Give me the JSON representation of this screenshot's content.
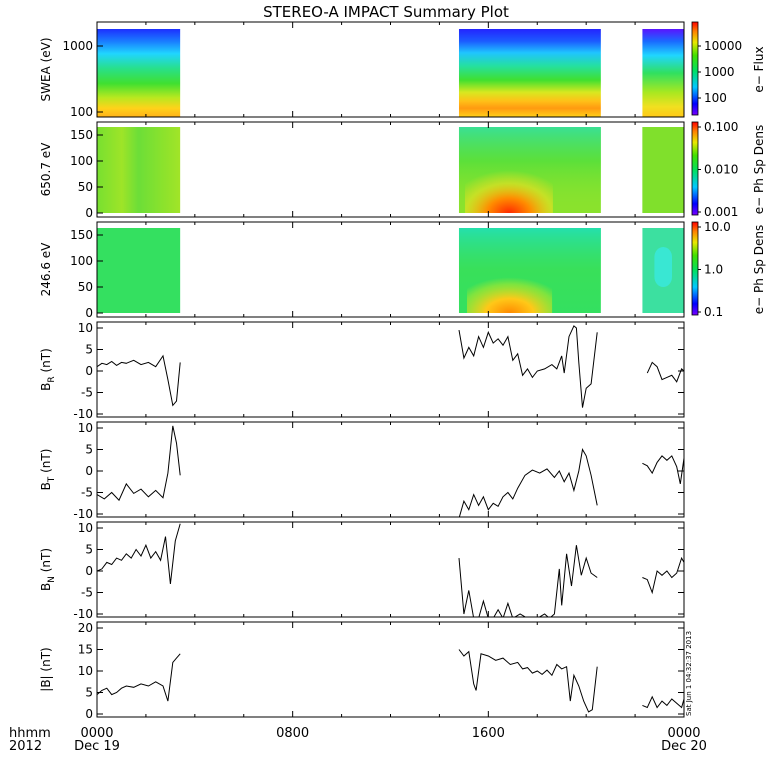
{
  "title": "STEREO-A IMPACT Summary Plot",
  "stamp": "Sat Jun  1 04:32:37 2013",
  "time_axis": {
    "label_row1": "hhmm",
    "label_row2": "2012",
    "ticks": [
      {
        "value": "0000",
        "date": "Dec 19"
      },
      {
        "value": "0800",
        "date": ""
      },
      {
        "value": "1600",
        "date": ""
      },
      {
        "value": "0000",
        "date": "Dec 20"
      }
    ]
  },
  "chart_data": [
    {
      "type": "heatmap",
      "id": "swea",
      "ylabel": "SWEA (eV)",
      "yscale": "log",
      "ylim": [
        90,
        2000
      ],
      "yticks": [
        "1000",
        "100"
      ],
      "colorbar": {
        "label": "e− Flux",
        "ticks": [
          "10000",
          "1000",
          "100"
        ],
        "scale": "log"
      },
      "data_intervals_hours": [
        [
          0.0,
          3.4
        ],
        [
          14.8,
          20.6
        ],
        [
          22.3,
          24.0
        ]
      ],
      "colors": {
        "top": "#1a3cff",
        "upper": "#22d6ff",
        "mid": "#2ee05a",
        "lower": "#d8ec22",
        "bottom": "#ffb21c"
      }
    },
    {
      "type": "heatmap",
      "id": "pad650",
      "ylabel": "650.7 eV",
      "ylim": [
        0,
        180
      ],
      "yticks": [
        "150",
        "100",
        "50",
        "0"
      ],
      "colorbar": {
        "label": "e− Ph Sp Dens",
        "ticks": [
          "0.100",
          "0.010",
          "0.001"
        ],
        "scale": "log"
      },
      "data_intervals_hours": [
        [
          0.0,
          3.4
        ],
        [
          14.8,
          20.6
        ],
        [
          22.3,
          24.0
        ]
      ]
    },
    {
      "type": "heatmap",
      "id": "pad246",
      "ylabel": "246.6 eV",
      "ylim": [
        0,
        180
      ],
      "yticks": [
        "150",
        "100",
        "50",
        "0"
      ],
      "colorbar": {
        "label": "e− Ph Sp Dens",
        "ticks": [
          "10.0",
          "1.0",
          "0.1"
        ],
        "scale": "log"
      },
      "data_intervals_hours": [
        [
          0.0,
          3.4
        ],
        [
          14.8,
          20.6
        ],
        [
          22.3,
          24.0
        ]
      ]
    },
    {
      "type": "line",
      "id": "br",
      "ylabel_main": "B",
      "ylabel_sub": "R",
      "ylabel_unit": " (nT)",
      "ylim": [
        -10,
        10
      ],
      "yticks": [
        10,
        5,
        0,
        -5,
        -10
      ],
      "segments": [
        [
          [
            0.0,
            1.0
          ],
          [
            0.2,
            1.8
          ],
          [
            0.4,
            1.5
          ],
          [
            0.6,
            2.2
          ],
          [
            0.8,
            1.3
          ],
          [
            1.0,
            2.0
          ],
          [
            1.2,
            1.8
          ],
          [
            1.5,
            2.5
          ],
          [
            1.8,
            1.5
          ],
          [
            2.1,
            2.0
          ],
          [
            2.4,
            1.0
          ],
          [
            2.7,
            3.5
          ],
          [
            2.9,
            -2.0
          ],
          [
            3.1,
            -8.0
          ],
          [
            3.25,
            -7.0
          ],
          [
            3.4,
            2.0
          ]
        ],
        [
          [
            14.8,
            9.5
          ],
          [
            15.0,
            3.0
          ],
          [
            15.2,
            5.5
          ],
          [
            15.4,
            3.5
          ],
          [
            15.6,
            8.0
          ],
          [
            15.8,
            5.5
          ],
          [
            16.0,
            9.0
          ],
          [
            16.2,
            6.5
          ],
          [
            16.4,
            7.5
          ],
          [
            16.6,
            6.0
          ],
          [
            16.8,
            8.0
          ],
          [
            17.0,
            2.5
          ],
          [
            17.2,
            4.0
          ],
          [
            17.4,
            -1.0
          ],
          [
            17.6,
            0.5
          ],
          [
            17.8,
            -1.5
          ],
          [
            18.0,
            0.0
          ],
          [
            18.3,
            0.5
          ],
          [
            18.6,
            1.5
          ],
          [
            18.8,
            0.5
          ],
          [
            19.0,
            3.5
          ],
          [
            19.1,
            -0.5
          ],
          [
            19.3,
            8.0
          ],
          [
            19.5,
            10.5
          ],
          [
            19.6,
            10.0
          ],
          [
            19.7,
            2.0
          ],
          [
            19.85,
            -8.5
          ],
          [
            20.0,
            -4.0
          ],
          [
            20.2,
            -3.0
          ],
          [
            20.45,
            9.0
          ]
        ],
        [
          [
            22.5,
            -0.5
          ],
          [
            22.7,
            2.0
          ],
          [
            22.9,
            1.0
          ],
          [
            23.1,
            -2.0
          ],
          [
            23.3,
            -1.5
          ],
          [
            23.5,
            -1.0
          ],
          [
            23.7,
            -2.5
          ],
          [
            23.9,
            0.5
          ],
          [
            24.0,
            0.0
          ]
        ]
      ]
    },
    {
      "type": "line",
      "id": "bt",
      "ylabel_main": "B",
      "ylabel_sub": "T",
      "ylabel_unit": " (nT)",
      "ylim": [
        -10,
        10
      ],
      "yticks": [
        10,
        5,
        0,
        -5,
        -10
      ],
      "segments": [
        [
          [
            0.0,
            -5.5
          ],
          [
            0.3,
            -6.5
          ],
          [
            0.6,
            -5.0
          ],
          [
            0.9,
            -6.8
          ],
          [
            1.2,
            -3.0
          ],
          [
            1.5,
            -5.2
          ],
          [
            1.8,
            -4.2
          ],
          [
            2.1,
            -6.0
          ],
          [
            2.4,
            -4.5
          ],
          [
            2.7,
            -6.2
          ],
          [
            2.9,
            -0.5
          ],
          [
            3.1,
            10.5
          ],
          [
            3.25,
            6.5
          ],
          [
            3.4,
            -1.0
          ]
        ],
        [
          [
            14.8,
            -11.0
          ],
          [
            15.0,
            -7.0
          ],
          [
            15.2,
            -9.0
          ],
          [
            15.4,
            -5.5
          ],
          [
            15.6,
            -8.0
          ],
          [
            15.8,
            -6.0
          ],
          [
            16.0,
            -9.0
          ],
          [
            16.2,
            -7.5
          ],
          [
            16.4,
            -8.2
          ],
          [
            16.6,
            -6.0
          ],
          [
            16.8,
            -5.0
          ],
          [
            17.0,
            -6.5
          ],
          [
            17.2,
            -4.0
          ],
          [
            17.5,
            -1.0
          ],
          [
            17.8,
            0.2
          ],
          [
            18.1,
            -0.5
          ],
          [
            18.4,
            0.5
          ],
          [
            18.7,
            -1.5
          ],
          [
            18.9,
            0.0
          ],
          [
            19.1,
            -2.5
          ],
          [
            19.3,
            -0.5
          ],
          [
            19.5,
            -4.5
          ],
          [
            19.7,
            0.0
          ],
          [
            19.85,
            5.0
          ],
          [
            20.0,
            3.5
          ],
          [
            20.2,
            -1.0
          ],
          [
            20.45,
            -8.0
          ]
        ],
        [
          [
            22.3,
            1.8
          ],
          [
            22.5,
            1.2
          ],
          [
            22.7,
            -0.5
          ],
          [
            22.9,
            2.0
          ],
          [
            23.1,
            3.5
          ],
          [
            23.3,
            2.5
          ],
          [
            23.5,
            3.5
          ],
          [
            23.7,
            1.0
          ],
          [
            23.85,
            -3.0
          ],
          [
            24.0,
            3.0
          ]
        ]
      ]
    },
    {
      "type": "line",
      "id": "bn",
      "ylabel_main": "B",
      "ylabel_sub": "N",
      "ylabel_unit": " (nT)",
      "ylim": [
        -10,
        10
      ],
      "yticks": [
        10,
        5,
        0,
        -5,
        -10
      ],
      "segments": [
        [
          [
            0.0,
            0.0
          ],
          [
            0.2,
            0.5
          ],
          [
            0.4,
            2.0
          ],
          [
            0.6,
            1.5
          ],
          [
            0.8,
            3.0
          ],
          [
            1.0,
            2.5
          ],
          [
            1.2,
            4.0
          ],
          [
            1.4,
            3.0
          ],
          [
            1.6,
            5.0
          ],
          [
            1.8,
            3.5
          ],
          [
            2.0,
            6.0
          ],
          [
            2.2,
            3.0
          ],
          [
            2.4,
            4.5
          ],
          [
            2.6,
            2.5
          ],
          [
            2.8,
            8.0
          ],
          [
            3.0,
            -3.0
          ],
          [
            3.2,
            7.0
          ],
          [
            3.4,
            11.0
          ]
        ],
        [
          [
            14.8,
            3.0
          ],
          [
            15.0,
            -10.0
          ],
          [
            15.2,
            -4.5
          ],
          [
            15.4,
            -11.0
          ],
          [
            15.6,
            -11.0
          ],
          [
            15.8,
            -7.0
          ],
          [
            16.0,
            -11.0
          ],
          [
            16.2,
            -11.0
          ],
          [
            16.4,
            -9.0
          ],
          [
            16.6,
            -11.0
          ],
          [
            16.8,
            -7.5
          ],
          [
            17.0,
            -11.0
          ],
          [
            17.3,
            -10.0
          ],
          [
            17.6,
            -11.0
          ],
          [
            18.0,
            -11.0
          ],
          [
            18.3,
            -10.0
          ],
          [
            18.5,
            -11.0
          ],
          [
            18.7,
            -10.0
          ],
          [
            18.9,
            0.5
          ],
          [
            19.0,
            -8.0
          ],
          [
            19.2,
            4.0
          ],
          [
            19.4,
            -3.5
          ],
          [
            19.6,
            6.0
          ],
          [
            19.8,
            -1.0
          ],
          [
            20.0,
            3.0
          ],
          [
            20.2,
            -0.5
          ],
          [
            20.45,
            -1.5
          ]
        ],
        [
          [
            22.3,
            -1.5
          ],
          [
            22.5,
            -2.0
          ],
          [
            22.7,
            -5.0
          ],
          [
            22.9,
            0.0
          ],
          [
            23.1,
            -1.0
          ],
          [
            23.3,
            0.0
          ],
          [
            23.5,
            -1.5
          ],
          [
            23.7,
            -0.5
          ],
          [
            23.9,
            3.0
          ],
          [
            24.0,
            2.0
          ]
        ]
      ]
    },
    {
      "type": "line",
      "id": "bmag",
      "ylabel_main": "|B|",
      "ylabel_sub": "",
      "ylabel_unit": " (nT)",
      "ylim": [
        0,
        20
      ],
      "yticks": [
        20,
        15,
        10,
        5,
        0
      ],
      "segments": [
        [
          [
            0.0,
            4.5
          ],
          [
            0.2,
            5.5
          ],
          [
            0.4,
            6.0
          ],
          [
            0.6,
            4.5
          ],
          [
            0.8,
            5.0
          ],
          [
            1.0,
            6.0
          ],
          [
            1.2,
            6.5
          ],
          [
            1.5,
            6.2
          ],
          [
            1.8,
            7.0
          ],
          [
            2.1,
            6.5
          ],
          [
            2.4,
            7.5
          ],
          [
            2.7,
            6.5
          ],
          [
            2.9,
            3.0
          ],
          [
            3.1,
            12.0
          ],
          [
            3.25,
            13.0
          ],
          [
            3.4,
            14.0
          ]
        ],
        [
          [
            14.8,
            15.0
          ],
          [
            15.0,
            13.5
          ],
          [
            15.2,
            14.5
          ],
          [
            15.4,
            7.0
          ],
          [
            15.5,
            5.5
          ],
          [
            15.7,
            14.0
          ],
          [
            16.0,
            13.5
          ],
          [
            16.3,
            12.5
          ],
          [
            16.6,
            13.0
          ],
          [
            16.9,
            11.5
          ],
          [
            17.2,
            12.0
          ],
          [
            17.4,
            10.5
          ],
          [
            17.6,
            10.8
          ],
          [
            17.8,
            9.5
          ],
          [
            18.0,
            10.0
          ],
          [
            18.2,
            9.2
          ],
          [
            18.4,
            10.2
          ],
          [
            18.6,
            9.0
          ],
          [
            18.8,
            11.5
          ],
          [
            19.0,
            10.5
          ],
          [
            19.2,
            11.0
          ],
          [
            19.35,
            3.0
          ],
          [
            19.5,
            9.0
          ],
          [
            19.7,
            6.5
          ],
          [
            19.9,
            3.0
          ],
          [
            20.1,
            0.5
          ],
          [
            20.25,
            1.0
          ],
          [
            20.45,
            11.0
          ]
        ],
        [
          [
            22.3,
            2.0
          ],
          [
            22.5,
            1.5
          ],
          [
            22.7,
            4.0
          ],
          [
            22.9,
            1.5
          ],
          [
            23.1,
            3.0
          ],
          [
            23.3,
            2.0
          ],
          [
            23.5,
            3.5
          ],
          [
            23.7,
            2.5
          ],
          [
            23.9,
            1.5
          ],
          [
            24.0,
            3.5
          ]
        ]
      ]
    }
  ]
}
